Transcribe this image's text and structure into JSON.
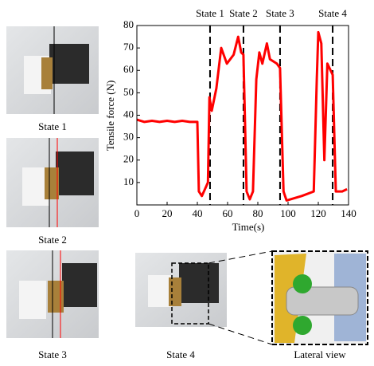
{
  "chart_data": {
    "type": "line",
    "x": [
      0,
      5,
      10,
      15,
      20,
      25,
      30,
      35,
      40,
      41,
      43,
      47,
      48,
      49.5,
      52.6,
      55.8,
      59.5,
      64,
      67,
      69,
      70.5,
      72.6,
      74.7,
      76.8,
      79,
      81,
      83,
      86,
      88,
      92.6,
      94.7,
      97,
      99,
      109,
      117,
      119,
      120,
      122,
      124,
      126,
      129.5,
      131.6,
      135.8,
      139
    ],
    "values": [
      38,
      37,
      37.5,
      37,
      37.5,
      37,
      37.5,
      37,
      37,
      6,
      4,
      10,
      48,
      42,
      52,
      70,
      63,
      67,
      75,
      68,
      67,
      6,
      2.5,
      6,
      56,
      68,
      63,
      72,
      65,
      63,
      61,
      6,
      2,
      4,
      6,
      56,
      77,
      72,
      20,
      63,
      58,
      6,
      6,
      7
    ],
    "color": "#ff0000",
    "xlabel": "Time(s)",
    "ylabel": "Tensile force (N)",
    "xlim": [
      0,
      140
    ],
    "xticks": [
      0,
      20,
      40,
      60,
      80,
      100,
      120,
      140
    ],
    "ylim": [
      0,
      80
    ],
    "yticks": [
      10,
      20,
      30,
      40,
      50,
      60,
      70,
      80
    ],
    "markers": [
      {
        "x": 48.4,
        "label": "State 1"
      },
      {
        "x": 70.5,
        "label": "State 2"
      },
      {
        "x": 94.7,
        "label": "State 3"
      },
      {
        "x": 129.5,
        "label": "State 4"
      }
    ]
  },
  "captions": [
    "State 1",
    "State 2",
    "State 3",
    "State 4",
    "Lateral view"
  ]
}
